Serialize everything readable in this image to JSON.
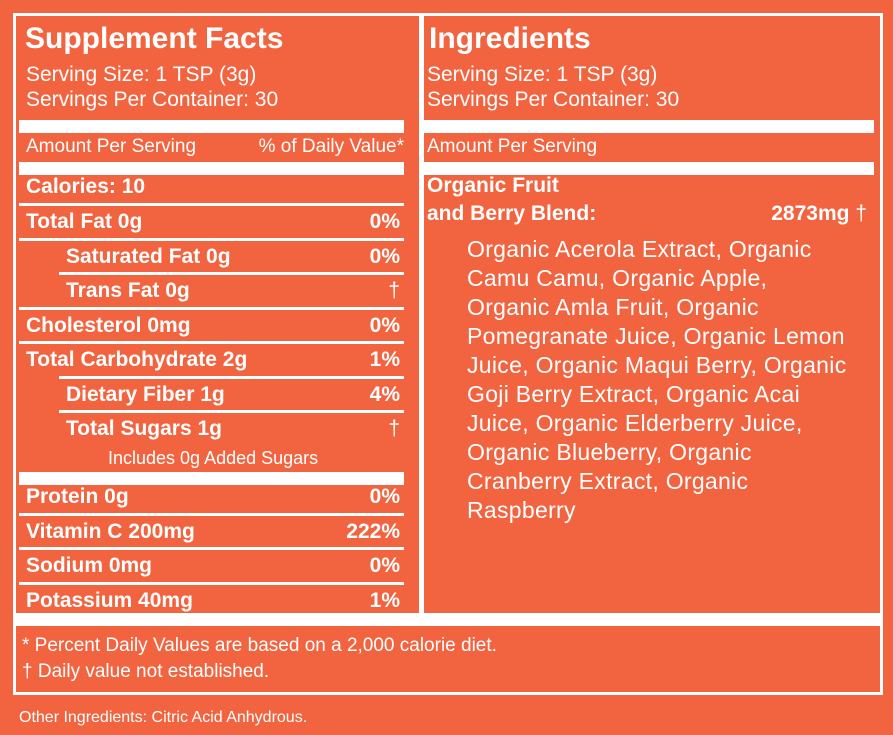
{
  "supplement_facts": {
    "title": "Supplement Facts",
    "serving_size": "Serving Size:  1 TSP (3g)",
    "servings_per_container": "Servings Per Container:  30",
    "amount_header": "Amount Per Serving",
    "dv_header": "% of Daily Value*",
    "calories": "Calories:  10",
    "rows": [
      {
        "label": "Total Fat 0g",
        "dv": "0%"
      },
      {
        "label": "Saturated Fat 0g",
        "dv": "0%"
      },
      {
        "label": "Trans Fat 0g",
        "dv": "†"
      },
      {
        "label": "Cholesterol 0mg",
        "dv": "0%"
      },
      {
        "label": "Total Carbohydrate 2g",
        "dv": "1%"
      },
      {
        "label": "Dietary Fiber 1g",
        "dv": "4%"
      },
      {
        "label": "Total Sugars 1g",
        "dv": "†"
      },
      {
        "label": "Protein 0g",
        "dv": "0%"
      },
      {
        "label": "Vitamin C 200mg",
        "dv": "222%"
      },
      {
        "label": "Sodium 0mg",
        "dv": "0%"
      },
      {
        "label": "Potassium 40mg",
        "dv": "1%"
      }
    ],
    "added_sugars": "Includes 0g Added Sugars"
  },
  "ingredients": {
    "title": "Ingredients",
    "serving_size": "Serving Size:  1 TSP (3g)",
    "servings_per_container": "Servings Per Container:  30",
    "amount_header": "Amount Per Serving",
    "blend_line1": "Organic Fruit",
    "blend_line2": "and Berry Blend:",
    "blend_amount": "2873mg",
    "blend_dagger": "†",
    "blend_list": "Organic Acerola Extract, Organic Camu Camu, Organic Apple, Organic Amla Fruit, Organic Pomegranate Juice, Organic Lemon Juice, Organic Maqui Berry, Organic Goji Berry Extract, Organic Acai Juice, Organic Elderberry Juice, Organic Blueberry, Organic Cranberry Extract, Organic Raspberry"
  },
  "footnotes": {
    "percent_note": "* Percent Daily Values are based on a 2,000 calorie diet.",
    "dagger_note": "† Daily value not established."
  },
  "other_ingredients": "Other Ingredients:  Citric Acid Anhydrous.",
  "colors": {
    "background": "#F26440",
    "text": "#ffffff"
  }
}
